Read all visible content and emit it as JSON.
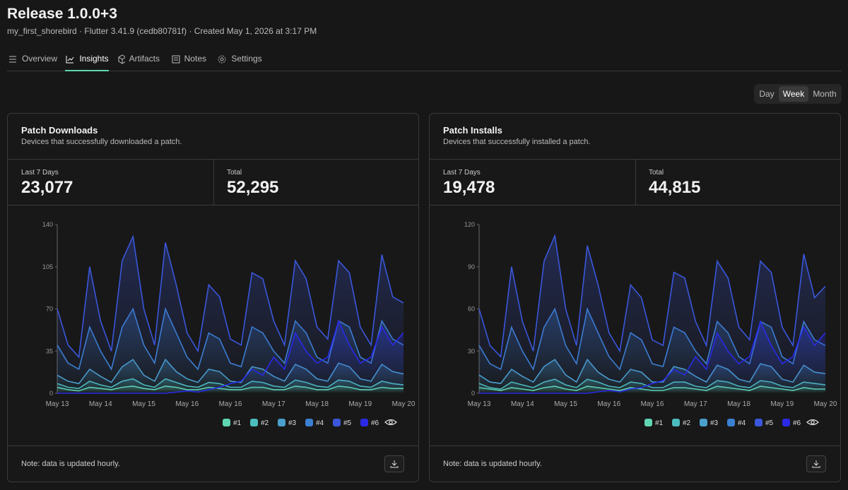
{
  "header": {
    "title": "Release 1.0.0+3",
    "subtitle": "my_first_shorebird · Flutter 3.41.9 (cedb80781f) · Created May 1, 2026 at 3:17 PM"
  },
  "tabs": [
    "Overview",
    "Insights",
    "Artifacts",
    "Notes",
    "Settings"
  ],
  "active_tab": 1,
  "range_options": [
    "Day",
    "Week",
    "Month"
  ],
  "range_selected": 1,
  "chart_data": [
    {
      "type": "line",
      "title": "Patch Downloads",
      "subtitle": "Devices that successfully downloaded a patch.",
      "stats": [
        {
          "label": "Last 7 Days",
          "value": "23,077"
        },
        {
          "label": "Total",
          "value": "52,295"
        }
      ],
      "note": "Note: data is updated hourly.",
      "ylim": [
        0,
        140
      ],
      "yticks": [
        0,
        35,
        70,
        105,
        140
      ],
      "categories": [
        "May 13",
        null,
        null,
        null,
        "May 14",
        null,
        null,
        null,
        "May 15",
        null,
        null,
        null,
        "May 16",
        null,
        null,
        null,
        "May 16",
        null,
        null,
        null,
        "May 17",
        null,
        null,
        null,
        "May 18",
        null,
        null,
        null,
        "May 19",
        null,
        null,
        null,
        "May 20"
      ],
      "series": [
        {
          "name": "#1",
          "color": "#5fd6b1",
          "values": [
            5,
            3,
            2,
            5,
            4,
            3,
            5,
            6,
            4,
            3,
            6,
            5,
            3,
            3,
            5,
            4,
            3,
            3,
            5,
            5,
            3,
            3,
            6,
            5,
            3,
            3,
            6,
            5,
            3,
            3,
            5,
            4,
            4
          ]
        },
        {
          "name": "#2",
          "color": "#4cbcbc",
          "values": [
            8,
            5,
            4,
            10,
            7,
            5,
            10,
            12,
            7,
            5,
            12,
            9,
            6,
            5,
            9,
            8,
            5,
            5,
            10,
            9,
            6,
            5,
            11,
            9,
            6,
            5,
            11,
            10,
            6,
            5,
            10,
            8,
            7
          ]
        },
        {
          "name": "#3",
          "color": "#4a9fcc",
          "values": [
            15,
            10,
            8,
            20,
            14,
            9,
            22,
            28,
            15,
            10,
            28,
            18,
            12,
            9,
            20,
            18,
            10,
            9,
            22,
            20,
            14,
            10,
            24,
            20,
            12,
            10,
            25,
            22,
            12,
            10,
            24,
            18,
            16
          ]
        },
        {
          "name": "#4",
          "color": "#3c80d2",
          "values": [
            40,
            25,
            20,
            55,
            35,
            20,
            55,
            70,
            40,
            25,
            70,
            50,
            30,
            20,
            50,
            45,
            25,
            22,
            55,
            50,
            35,
            25,
            60,
            50,
            30,
            25,
            60,
            55,
            30,
            25,
            60,
            45,
            40
          ]
        },
        {
          "name": "#5",
          "color": "#3a57dc",
          "values": [
            70,
            40,
            30,
            105,
            60,
            35,
            110,
            130,
            70,
            40,
            125,
            90,
            50,
            35,
            90,
            80,
            45,
            40,
            100,
            95,
            60,
            40,
            110,
            95,
            55,
            45,
            110,
            100,
            55,
            40,
            115,
            80,
            75
          ]
        },
        {
          "name": "#6",
          "color": "#2a2ae6",
          "values": [
            0,
            0,
            0,
            0,
            0,
            0,
            0,
            0,
            0,
            0,
            0,
            1,
            2,
            1,
            3,
            5,
            8,
            10,
            20,
            15,
            30,
            20,
            50,
            35,
            25,
            30,
            60,
            40,
            25,
            30,
            55,
            40,
            50
          ]
        }
      ]
    },
    {
      "type": "line",
      "title": "Patch Installs",
      "subtitle": "Devices that successfully installed a patch.",
      "stats": [
        {
          "label": "Last 7 Days",
          "value": "19,478"
        },
        {
          "label": "Total",
          "value": "44,815"
        }
      ],
      "note": "Note: data is updated hourly.",
      "ylim": [
        0,
        120
      ],
      "yticks": [
        0,
        30,
        60,
        90,
        120
      ],
      "categories": [
        "May 13",
        null,
        null,
        null,
        "May 14",
        null,
        null,
        null,
        "May 15",
        null,
        null,
        null,
        "May 16",
        null,
        null,
        null,
        "May 16",
        null,
        null,
        null,
        "May 17",
        null,
        null,
        null,
        "May 18",
        null,
        null,
        null,
        "May 19",
        null,
        null,
        null,
        "May 20"
      ],
      "series": [
        {
          "name": "#1",
          "color": "#5fd6b1",
          "values": [
            4,
            3,
            2,
            4,
            3,
            2,
            4,
            5,
            3,
            2,
            5,
            4,
            3,
            2,
            4,
            3,
            2,
            2,
            4,
            4,
            3,
            2,
            5,
            4,
            3,
            2,
            5,
            4,
            3,
            2,
            4,
            3,
            3
          ]
        },
        {
          "name": "#2",
          "color": "#4cbcbc",
          "values": [
            7,
            4,
            3,
            8,
            6,
            4,
            8,
            10,
            6,
            4,
            10,
            8,
            5,
            4,
            8,
            7,
            4,
            4,
            8,
            8,
            5,
            4,
            9,
            8,
            5,
            4,
            9,
            8,
            5,
            4,
            8,
            7,
            6
          ]
        },
        {
          "name": "#3",
          "color": "#4a9fcc",
          "values": [
            13,
            8,
            7,
            17,
            12,
            8,
            19,
            24,
            13,
            8,
            24,
            15,
            10,
            8,
            17,
            15,
            8,
            8,
            19,
            17,
            12,
            8,
            20,
            17,
            10,
            8,
            21,
            19,
            10,
            8,
            20,
            15,
            14
          ]
        },
        {
          "name": "#4",
          "color": "#3c80d2",
          "values": [
            34,
            21,
            17,
            47,
            30,
            17,
            47,
            60,
            34,
            21,
            60,
            43,
            26,
            17,
            43,
            38,
            21,
            19,
            47,
            43,
            30,
            21,
            51,
            43,
            26,
            21,
            51,
            47,
            26,
            21,
            51,
            38,
            34
          ]
        },
        {
          "name": "#5",
          "color": "#3a57dc",
          "values": [
            60,
            34,
            26,
            90,
            51,
            30,
            94,
            112,
            60,
            34,
            105,
            77,
            43,
            30,
            77,
            68,
            38,
            34,
            86,
            82,
            51,
            34,
            94,
            82,
            47,
            38,
            94,
            86,
            47,
            34,
            99,
            68,
            76
          ]
        },
        {
          "name": "#6",
          "color": "#2a2ae6",
          "values": [
            0,
            0,
            0,
            0,
            0,
            0,
            0,
            0,
            0,
            0,
            0,
            1,
            2,
            1,
            3,
            4,
            7,
            9,
            17,
            13,
            26,
            17,
            43,
            30,
            21,
            26,
            51,
            34,
            21,
            26,
            47,
            34,
            43
          ]
        }
      ]
    }
  ]
}
